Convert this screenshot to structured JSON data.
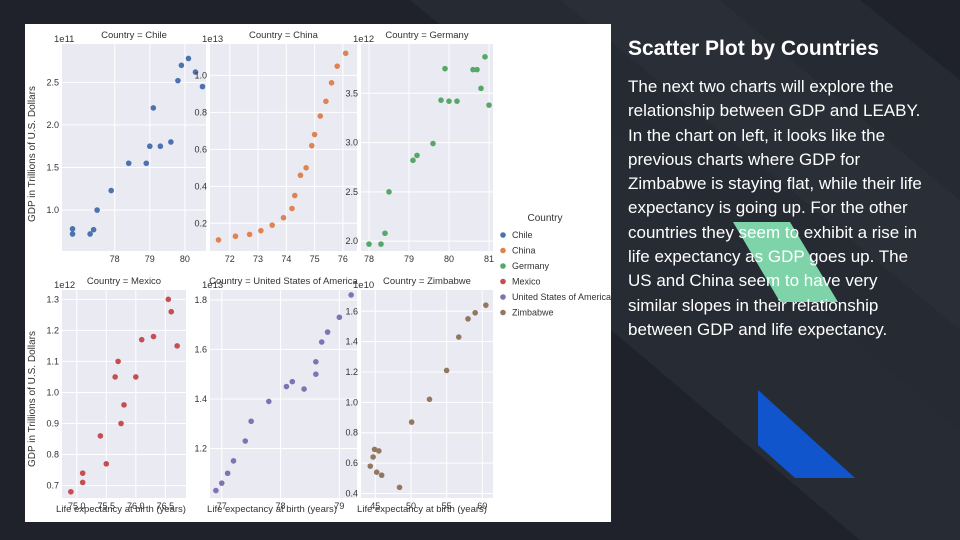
{
  "slide": {
    "title": "Scatter Plot by Countries",
    "body": "The next two charts will explore the relationship between GDP and LEABY. In the chart on left, it looks like the previous charts where GDP for Zimbabwe is staying flat, while their life expectancy is going up. For the other countries they seem to exhibit a rise in life expectancy as GDP goes up. The US and China seem to have very similar slopes in their relationship between GDP and life expectancy."
  },
  "theme": {
    "background": "#1f222b",
    "accent_green": "#7fd3a9",
    "accent_blue": "#1155cc"
  },
  "chart_data": {
    "type": "scatter",
    "grid": true,
    "ylabel": "GDP in Trillions of U.S. Dollars",
    "xlabel": "Life expectancy at birth (years)",
    "legend": {
      "title": "Country",
      "placement": "right",
      "entries": [
        {
          "name": "Chile",
          "color": "#4c72b0"
        },
        {
          "name": "China",
          "color": "#dd8452"
        },
        {
          "name": "Germany",
          "color": "#55a868"
        },
        {
          "name": "Mexico",
          "color": "#c44e52"
        },
        {
          "name": "United States of America",
          "color": "#8172b3"
        },
        {
          "name": "Zimbabwe",
          "color": "#937860"
        }
      ]
    },
    "facets": [
      {
        "title": "Country = Chile",
        "color": "#4c72b0",
        "exponent": "1e11",
        "xlim": [
          76.5,
          80.6
        ],
        "ylim": [
          0.52,
          2.95
        ],
        "xticks": [
          78,
          79,
          80
        ],
        "xtick_labels": [
          "78",
          "79",
          "80"
        ],
        "yticks": [
          1.0,
          1.5,
          2.0,
          2.5
        ],
        "ytick_labels": [
          "1.0",
          "1.5",
          "2.0",
          "2.5"
        ],
        "points": [
          [
            76.8,
            0.78
          ],
          [
            76.8,
            0.72
          ],
          [
            77.3,
            0.72
          ],
          [
            77.4,
            0.77
          ],
          [
            77.5,
            1.0
          ],
          [
            77.9,
            1.23
          ],
          [
            78.4,
            1.55
          ],
          [
            78.9,
            1.55
          ],
          [
            79.0,
            1.75
          ],
          [
            79.1,
            2.2
          ],
          [
            79.3,
            1.75
          ],
          [
            79.6,
            1.8
          ],
          [
            79.8,
            2.52
          ],
          [
            79.9,
            2.7
          ],
          [
            80.1,
            2.78
          ],
          [
            80.3,
            2.62
          ],
          [
            80.5,
            2.45
          ]
        ]
      },
      {
        "title": "Country = China",
        "color": "#dd8452",
        "exponent": "1e13",
        "xlim": [
          71.3,
          76.5
        ],
        "ylim": [
          0.05,
          1.17
        ],
        "xticks": [
          72,
          73,
          74,
          75,
          76
        ],
        "xtick_labels": [
          "72",
          "73",
          "74",
          "75",
          "76"
        ],
        "yticks": [
          0.2,
          0.4,
          0.6,
          0.8,
          1.0
        ],
        "ytick_labels": [
          "0.2",
          "0.4",
          "0.6",
          "0.8",
          "1.0"
        ],
        "points": [
          [
            71.6,
            0.11
          ],
          [
            72.2,
            0.13
          ],
          [
            72.7,
            0.14
          ],
          [
            73.1,
            0.16
          ],
          [
            73.5,
            0.19
          ],
          [
            73.9,
            0.23
          ],
          [
            74.2,
            0.28
          ],
          [
            74.3,
            0.35
          ],
          [
            74.5,
            0.46
          ],
          [
            74.7,
            0.5
          ],
          [
            74.9,
            0.62
          ],
          [
            75.0,
            0.68
          ],
          [
            75.2,
            0.78
          ],
          [
            75.4,
            0.86
          ],
          [
            75.6,
            0.96
          ],
          [
            75.8,
            1.05
          ],
          [
            76.1,
            1.12
          ]
        ]
      },
      {
        "title": "Country = Germany",
        "color": "#55a868",
        "exponent": "1e12",
        "xlim": [
          77.8,
          81.1
        ],
        "ylim": [
          1.9,
          4.0
        ],
        "xticks": [
          78,
          79,
          80,
          81
        ],
        "xtick_labels": [
          "78",
          "79",
          "80",
          "81"
        ],
        "yticks": [
          2.0,
          2.5,
          3.0,
          3.5
        ],
        "ytick_labels": [
          "2.0",
          "2.5",
          "3.0",
          "3.5"
        ],
        "points": [
          [
            78.0,
            1.97
          ],
          [
            78.3,
            1.97
          ],
          [
            78.4,
            2.08
          ],
          [
            78.5,
            2.5
          ],
          [
            79.1,
            2.82
          ],
          [
            79.2,
            2.87
          ],
          [
            79.6,
            2.99
          ],
          [
            79.8,
            3.43
          ],
          [
            79.9,
            3.75
          ],
          [
            80.0,
            3.42
          ],
          [
            80.2,
            3.42
          ],
          [
            80.6,
            3.74
          ],
          [
            80.7,
            3.74
          ],
          [
            80.8,
            3.55
          ],
          [
            80.9,
            3.87
          ],
          [
            81.0,
            3.38
          ]
        ]
      },
      {
        "title": "Country = Mexico",
        "color": "#c44e52",
        "exponent": "1e12",
        "xlim": [
          74.75,
          76.85
        ],
        "ylim": [
          0.66,
          1.33
        ],
        "xticks": [
          75.0,
          75.5,
          76.0,
          76.5
        ],
        "xtick_labels": [
          "75.0",
          "75.5",
          "76.0",
          "76.5"
        ],
        "yticks": [
          0.7,
          0.8,
          0.9,
          1.0,
          1.1,
          1.2,
          1.3
        ],
        "ytick_labels": [
          "0.7",
          "0.8",
          "0.9",
          "1.0",
          "1.1",
          "1.2",
          "1.3"
        ],
        "points": [
          [
            74.9,
            0.68
          ],
          [
            75.1,
            0.71
          ],
          [
            75.1,
            0.74
          ],
          [
            75.4,
            0.86
          ],
          [
            75.5,
            0.77
          ],
          [
            75.65,
            1.05
          ],
          [
            75.7,
            1.1
          ],
          [
            75.75,
            0.9
          ],
          [
            75.8,
            0.96
          ],
          [
            76.0,
            1.05
          ],
          [
            76.1,
            1.17
          ],
          [
            76.3,
            1.18
          ],
          [
            76.55,
            1.3
          ],
          [
            76.6,
            1.26
          ],
          [
            76.7,
            1.15
          ]
        ]
      },
      {
        "title": "Country = United States of America",
        "color": "#8172b3",
        "exponent": "1e13",
        "xlim": [
          76.8,
          79.3
        ],
        "ylim": [
          1.0,
          1.84
        ],
        "xticks": [
          77,
          78,
          79
        ],
        "xtick_labels": [
          "77",
          "78",
          "79"
        ],
        "yticks": [
          1.2,
          1.4,
          1.6,
          1.8
        ],
        "ytick_labels": [
          "1.2",
          "1.4",
          "1.6",
          "1.8"
        ],
        "points": [
          [
            76.9,
            1.03
          ],
          [
            77.0,
            1.06
          ],
          [
            77.1,
            1.1
          ],
          [
            77.2,
            1.15
          ],
          [
            77.4,
            1.23
          ],
          [
            77.5,
            1.31
          ],
          [
            77.8,
            1.39
          ],
          [
            78.1,
            1.45
          ],
          [
            78.2,
            1.47
          ],
          [
            78.4,
            1.44
          ],
          [
            78.6,
            1.55
          ],
          [
            78.6,
            1.5
          ],
          [
            78.7,
            1.63
          ],
          [
            78.8,
            1.67
          ],
          [
            79.0,
            1.73
          ],
          [
            79.2,
            1.82
          ]
        ]
      },
      {
        "title": "Country = Zimbabwe",
        "color": "#937860",
        "exponent": "1e10",
        "xlim": [
          43.0,
          61.5
        ],
        "ylim": [
          0.37,
          1.74
        ],
        "xticks": [
          45,
          50,
          55,
          60
        ],
        "xtick_labels": [
          "45",
          "50",
          "55",
          "60"
        ],
        "yticks": [
          0.4,
          0.6,
          0.8,
          1.0,
          1.2,
          1.4,
          1.6
        ],
        "ytick_labels": [
          "0.4",
          "0.6",
          "0.8",
          "1.0",
          "1.2",
          "1.4",
          "1.6"
        ],
        "points": [
          [
            44.3,
            0.58
          ],
          [
            44.7,
            0.64
          ],
          [
            44.9,
            0.69
          ],
          [
            45.2,
            0.54
          ],
          [
            45.5,
            0.68
          ],
          [
            45.9,
            0.52
          ],
          [
            48.4,
            0.44
          ],
          [
            50.1,
            0.87
          ],
          [
            52.6,
            1.02
          ],
          [
            55.0,
            1.21
          ],
          [
            56.7,
            1.43
          ],
          [
            58.0,
            1.55
          ],
          [
            59.0,
            1.59
          ],
          [
            60.5,
            1.64
          ]
        ]
      }
    ]
  }
}
